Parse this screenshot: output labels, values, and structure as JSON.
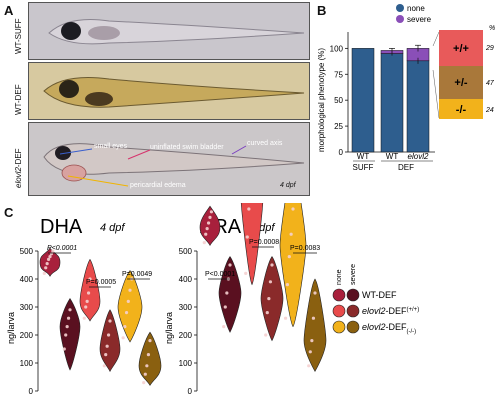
{
  "panel_a": {
    "letter": "A",
    "rows": [
      {
        "label": "WT-SUFF"
      },
      {
        "label": "WT-DEF"
      },
      {
        "label_italic": "elovl2",
        "label_rest": "-DEF"
      }
    ],
    "annotations": {
      "small_eyes": "small eyes",
      "swim_bladder": "uninflated swim bladder",
      "curved_axis": "curved axis",
      "edema": "pericardial edema",
      "stage": "4 dpf"
    },
    "colors": {
      "small_eyes": "#3a5fcd",
      "swim_bladder": "#d6336c",
      "curved_axis": "#7b3fbf",
      "edema": "#f0b400"
    }
  },
  "panel_b": {
    "letter": "B",
    "ylabel": "morphological phenotype (%)",
    "legend": [
      {
        "name": "none",
        "color": "#2e5e8e"
      },
      {
        "name": "severe",
        "color": "#8a4fb8"
      }
    ],
    "y_ticks": [
      "0",
      "25",
      "50",
      "75",
      "100"
    ],
    "genotype_box": {
      "pct": "%",
      "segments": [
        {
          "label": "+/+",
          "n": "29",
          "color": "#e85a5a"
        },
        {
          "label": "+/-",
          "n": "47",
          "color": "#a9783a"
        },
        {
          "label": "-/-",
          "n": "24",
          "color": "#f2b21b"
        }
      ]
    },
    "x_groups": {
      "wt1": "WT",
      "suff": "SUFF",
      "wt2": "WT",
      "elovl2": "elovl2",
      "def": "DEF"
    }
  },
  "panel_c": {
    "letter": "C",
    "ylabel": "ng/larva",
    "stage": "4 dpf",
    "legend": {
      "none": "none",
      "severe": "severe",
      "items": [
        {
          "label": "WT-DEF",
          "color": "#a8203c"
        },
        {
          "label_italic": "elovl2",
          "label_rest": "-DEF",
          "sup": "(+/+)",
          "color": "#e84b4b"
        },
        {
          "label_italic": "elovl2",
          "label_rest": "-DEF",
          "sup": "(-/-)",
          "color": "#f2b21b"
        }
      ]
    },
    "dha": {
      "title": "DHA",
      "ticks": [
        "0",
        "100",
        "200",
        "300",
        "400",
        "500"
      ],
      "p_values": [
        "P<0.0001",
        "P=0.0005",
        "P=0.0049"
      ]
    },
    "ara": {
      "title": "ARA",
      "ticks": [
        "0",
        "100",
        "200",
        "300",
        "400",
        "500"
      ],
      "p_values": [
        "P<0.0001",
        "P=0.0008",
        "P=0.0083"
      ]
    }
  },
  "chart_data": [
    {
      "type": "bar",
      "title": "",
      "ylabel": "morphological phenotype (%)",
      "ylim": [
        0,
        110
      ],
      "categories": [
        "WT SUFF",
        "WT DEF",
        "elovl2 DEF"
      ],
      "series": [
        {
          "name": "none",
          "values": [
            100,
            95,
            88
          ]
        },
        {
          "name": "severe",
          "values": [
            0,
            3,
            12
          ]
        }
      ],
      "error": [
        0,
        2,
        3
      ],
      "legend": "top"
    }
  ]
}
